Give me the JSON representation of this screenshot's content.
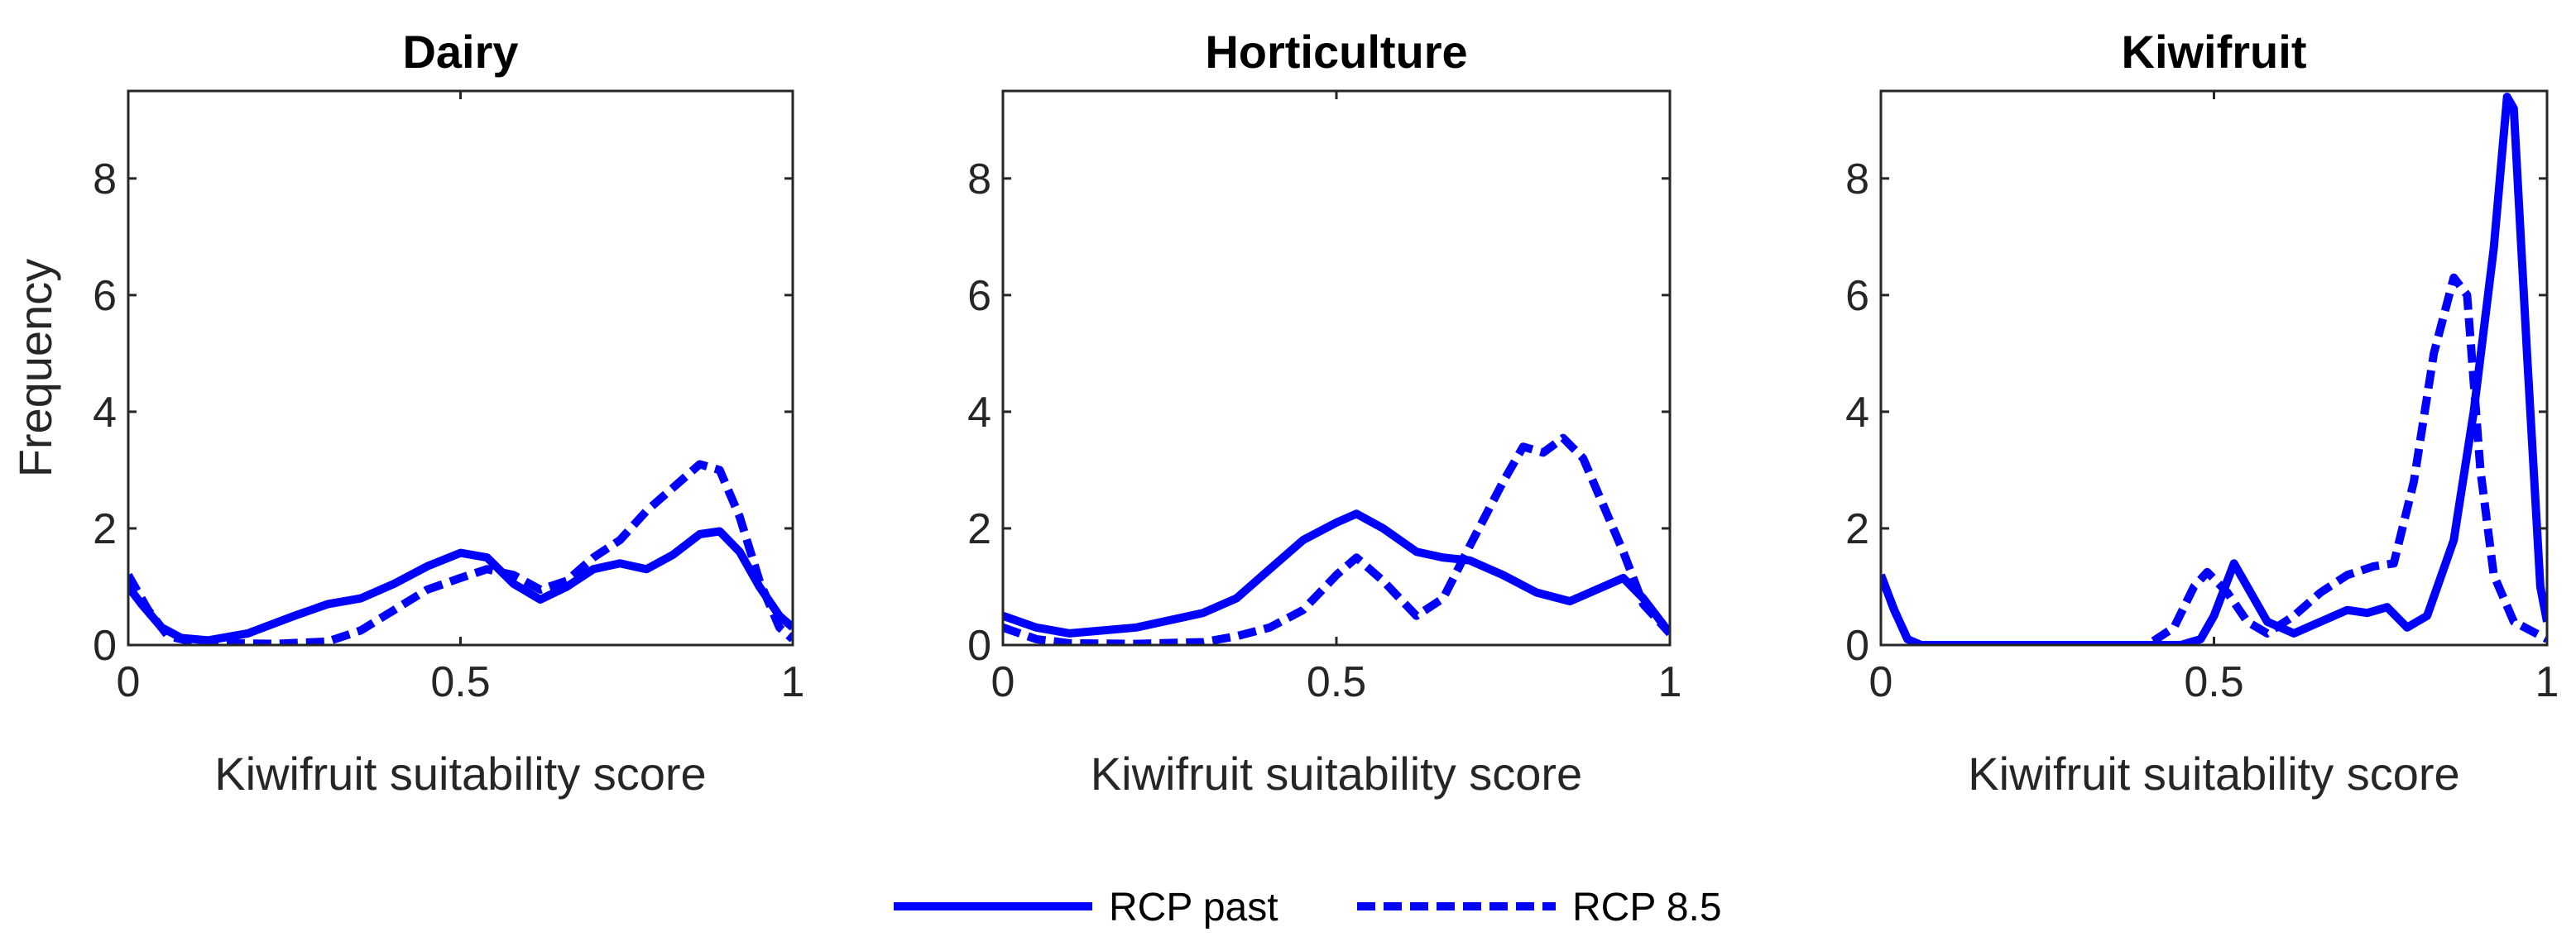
{
  "colors": {
    "series": "#0000ff",
    "axis": "#262626"
  },
  "legend": {
    "placement": "bottom-center",
    "entries": [
      {
        "label": "RCP past",
        "style": "solid"
      },
      {
        "label": "RCP 8.5",
        "style": "dashed"
      }
    ]
  },
  "chart_data": [
    {
      "type": "line",
      "title": "Dairy",
      "xlabel": "Kiwifruit suitability score",
      "ylabel": "Frequency",
      "xlim": [
        0,
        1
      ],
      "ylim": [
        0,
        9.5
      ],
      "xticks": [
        0,
        0.5,
        1
      ],
      "xticklabels": [
        "0",
        "0.5",
        "1"
      ],
      "yticks": [
        0,
        2,
        4,
        6,
        8
      ],
      "yticklabels": [
        "0",
        "2",
        "4",
        "6",
        "8"
      ],
      "grid": false,
      "series": [
        {
          "name": "RCP past",
          "x": [
            0,
            0.02,
            0.05,
            0.08,
            0.12,
            0.18,
            0.25,
            0.3,
            0.35,
            0.4,
            0.45,
            0.5,
            0.54,
            0.58,
            0.62,
            0.66,
            0.7,
            0.74,
            0.78,
            0.82,
            0.86,
            0.89,
            0.92,
            0.95,
            0.98,
            1
          ],
          "y": [
            1.0,
            0.7,
            0.3,
            0.12,
            0.08,
            0.2,
            0.5,
            0.7,
            0.8,
            1.05,
            1.35,
            1.58,
            1.5,
            1.05,
            0.78,
            1.0,
            1.3,
            1.4,
            1.3,
            1.55,
            1.9,
            1.95,
            1.6,
            1.0,
            0.5,
            0.3
          ]
        },
        {
          "name": "RCP 8.5",
          "x": [
            0,
            0.03,
            0.06,
            0.1,
            0.15,
            0.22,
            0.3,
            0.35,
            0.4,
            0.45,
            0.5,
            0.54,
            0.58,
            0.62,
            0.66,
            0.7,
            0.74,
            0.78,
            0.82,
            0.86,
            0.89,
            0.92,
            0.95,
            0.98,
            1
          ],
          "y": [
            1.2,
            0.6,
            0.15,
            0.05,
            0.03,
            0.02,
            0.06,
            0.25,
            0.6,
            0.95,
            1.15,
            1.3,
            1.2,
            0.95,
            1.1,
            1.5,
            1.8,
            2.3,
            2.7,
            3.1,
            3.0,
            2.2,
            1.1,
            0.3,
            0.1
          ]
        }
      ]
    },
    {
      "type": "line",
      "title": "Horticulture",
      "xlabel": "Kiwifruit suitability score",
      "ylabel": "",
      "xlim": [
        0,
        1
      ],
      "ylim": [
        0,
        9.5
      ],
      "xticks": [
        0,
        0.5,
        1
      ],
      "xticklabels": [
        "0",
        "0.5",
        "1"
      ],
      "yticks": [
        0,
        2,
        4,
        6,
        8
      ],
      "yticklabels": [
        "0",
        "2",
        "4",
        "6",
        "8"
      ],
      "grid": false,
      "series": [
        {
          "name": "RCP past",
          "x": [
            0,
            0.05,
            0.1,
            0.2,
            0.3,
            0.35,
            0.4,
            0.45,
            0.5,
            0.53,
            0.57,
            0.62,
            0.66,
            0.7,
            0.75,
            0.8,
            0.85,
            0.9,
            0.93,
            0.96,
            1
          ],
          "y": [
            0.5,
            0.3,
            0.2,
            0.3,
            0.55,
            0.8,
            1.3,
            1.8,
            2.1,
            2.25,
            2.0,
            1.6,
            1.5,
            1.45,
            1.2,
            0.9,
            0.75,
            1.0,
            1.15,
            0.8,
            0.2
          ]
        },
        {
          "name": "RCP 8.5",
          "x": [
            0,
            0.05,
            0.1,
            0.2,
            0.3,
            0.35,
            0.4,
            0.45,
            0.5,
            0.53,
            0.57,
            0.62,
            0.66,
            0.7,
            0.75,
            0.78,
            0.81,
            0.84,
            0.87,
            0.9,
            0.93,
            0.96,
            1
          ],
          "y": [
            0.3,
            0.1,
            0.03,
            0.02,
            0.05,
            0.15,
            0.3,
            0.6,
            1.2,
            1.5,
            1.1,
            0.5,
            0.8,
            1.7,
            2.8,
            3.4,
            3.3,
            3.55,
            3.2,
            2.4,
            1.6,
            0.7,
            0.2
          ]
        }
      ]
    },
    {
      "type": "line",
      "title": "Kiwifruit",
      "xlabel": "Kiwifruit suitability score",
      "ylabel": "",
      "xlim": [
        0,
        1
      ],
      "ylim": [
        0,
        9.5
      ],
      "xticks": [
        0,
        0.5,
        1
      ],
      "xticklabels": [
        "0",
        "0.5",
        "1"
      ],
      "yticks": [
        0,
        2,
        4,
        6,
        8
      ],
      "yticklabels": [
        "0",
        "2",
        "4",
        "6",
        "8"
      ],
      "grid": false,
      "series": [
        {
          "name": "RCP past",
          "x": [
            0,
            0.02,
            0.04,
            0.06,
            0.1,
            0.2,
            0.3,
            0.4,
            0.45,
            0.48,
            0.5,
            0.53,
            0.55,
            0.58,
            0.62,
            0.66,
            0.7,
            0.73,
            0.76,
            0.79,
            0.82,
            0.86,
            0.89,
            0.92,
            0.94,
            0.95,
            0.97,
            0.99,
            1
          ],
          "y": [
            1.2,
            0.6,
            0.1,
            0.0,
            0.0,
            0.0,
            0.0,
            0.0,
            0.0,
            0.1,
            0.5,
            1.4,
            1.0,
            0.4,
            0.2,
            0.4,
            0.6,
            0.55,
            0.65,
            0.3,
            0.5,
            1.8,
            4.0,
            6.8,
            9.4,
            9.2,
            5.0,
            1.0,
            0.4
          ]
        },
        {
          "name": "RCP 8.5",
          "x": [
            0,
            0.02,
            0.04,
            0.06,
            0.1,
            0.2,
            0.3,
            0.4,
            0.44,
            0.47,
            0.49,
            0.52,
            0.55,
            0.58,
            0.62,
            0.66,
            0.7,
            0.74,
            0.77,
            0.8,
            0.83,
            0.86,
            0.88,
            0.9,
            0.92,
            0.95,
            1
          ],
          "y": [
            1.2,
            0.6,
            0.1,
            0.0,
            0.0,
            0.0,
            0.0,
            0.0,
            0.3,
            1.0,
            1.25,
            0.9,
            0.4,
            0.2,
            0.5,
            0.9,
            1.2,
            1.35,
            1.4,
            2.8,
            5.0,
            6.3,
            6.0,
            3.0,
            1.2,
            0.4,
            0.1
          ]
        }
      ]
    }
  ]
}
